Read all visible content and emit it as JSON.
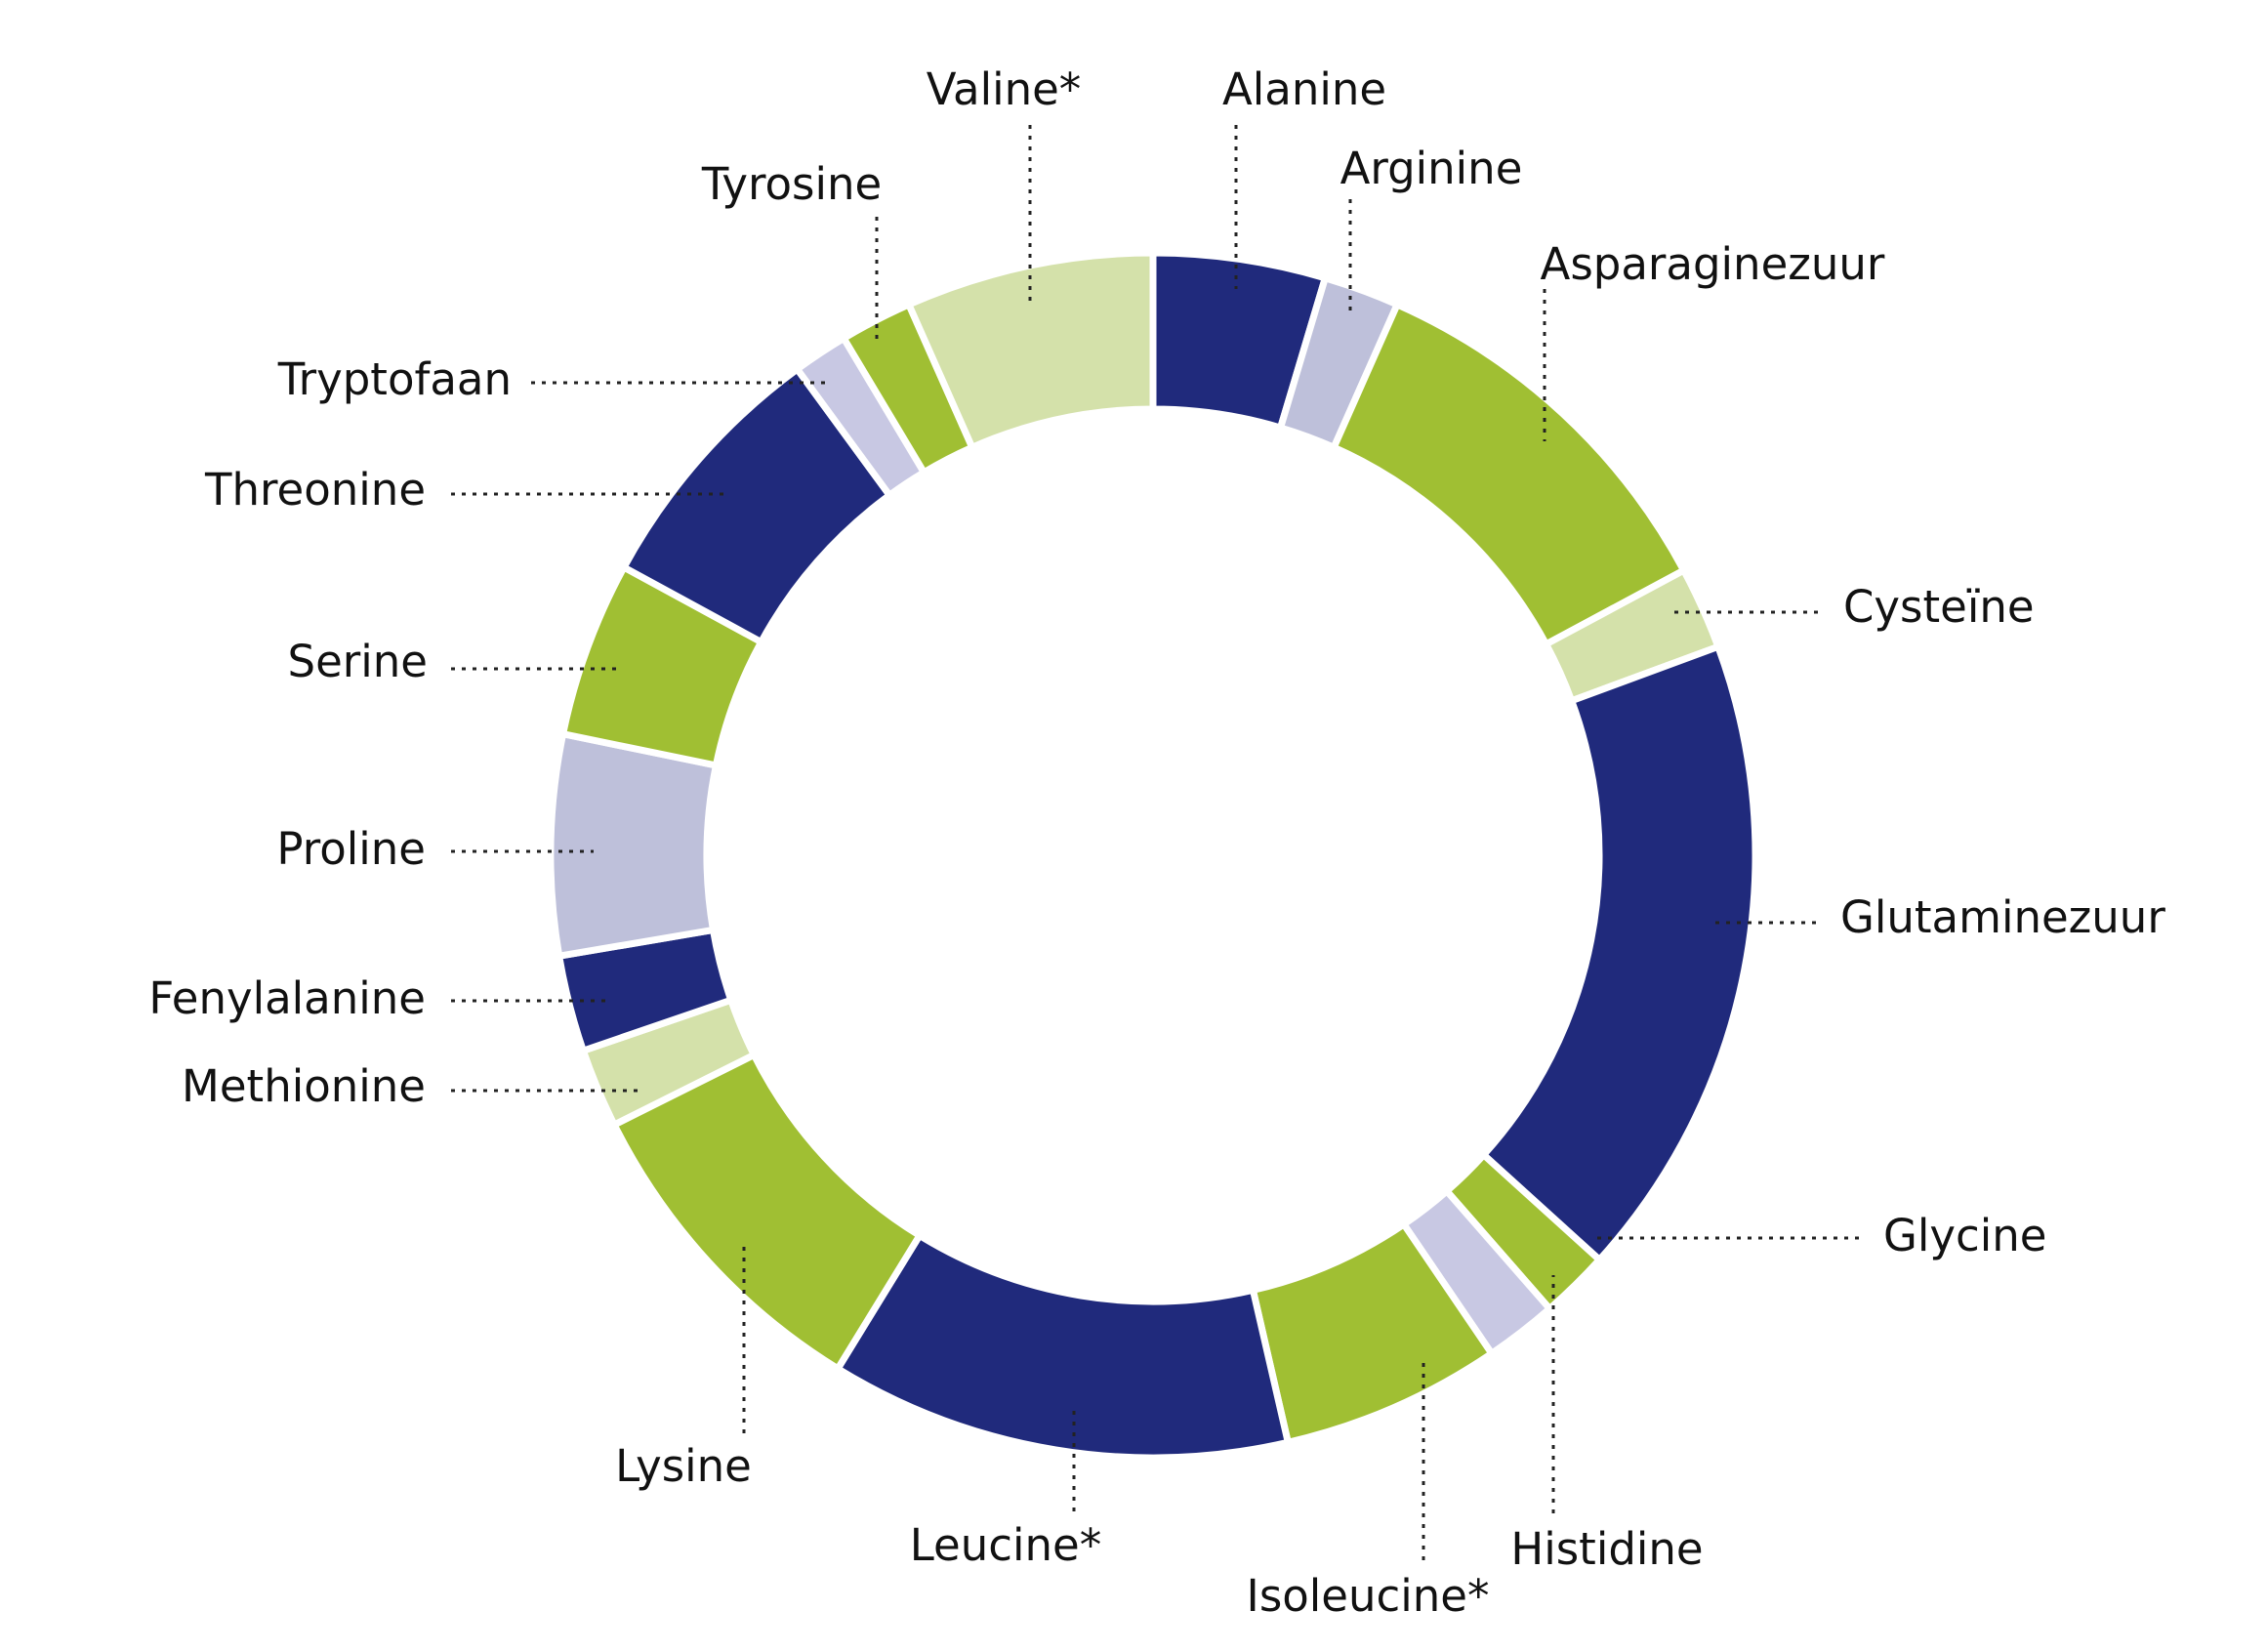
{
  "chart_data": {
    "type": "pie",
    "variant": "donut",
    "title": "",
    "legend": "none",
    "grid": false,
    "start": "top",
    "direction": "clockwise",
    "slices": [
      {
        "label": "Alanine",
        "value": 5.0,
        "color": "#202a7c"
      },
      {
        "label": "Arginine",
        "value": 2.2,
        "color": "#bec0da"
      },
      {
        "label": "Asparaginezuur",
        "value": 11.4,
        "color": "#a0bf33"
      },
      {
        "label": "Cysteïne",
        "value": 2.4,
        "color": "#d4e1aa"
      },
      {
        "label": "Glutaminezuur",
        "value": 18.8,
        "color": "#202a7c"
      },
      {
        "label": "Glycine",
        "value": 2.0,
        "color": "#a0bf33"
      },
      {
        "label": "Histidine",
        "value": 2.1,
        "color": "#c8c8e3"
      },
      {
        "label": "Isoleucine*",
        "value": 6.4,
        "color": "#a0bf33"
      },
      {
        "label": "Leucine*",
        "value": 13.4,
        "color": "#202a7c"
      },
      {
        "label": "Lysine",
        "value": 9.6,
        "color": "#a0bf33"
      },
      {
        "label": "Methionine",
        "value": 2.3,
        "color": "#d4e1aa"
      },
      {
        "label": "Fenylalanine",
        "value": 2.8,
        "color": "#202a7c"
      },
      {
        "label": "Proline",
        "value": 6.4,
        "color": "#bec0da"
      },
      {
        "label": "Serine",
        "value": 5.1,
        "color": "#a0bf33"
      },
      {
        "label": "Threonine",
        "value": 7.6,
        "color": "#202a7c"
      },
      {
        "label": "Tryptofaan",
        "value": 1.6,
        "color": "#c8c8e3"
      },
      {
        "label": "Tyrosine",
        "value": 2.1,
        "color": "#a0bf33"
      },
      {
        "label": "Valine*",
        "value": 7.2,
        "color": "#d4e1aa"
      }
    ]
  }
}
